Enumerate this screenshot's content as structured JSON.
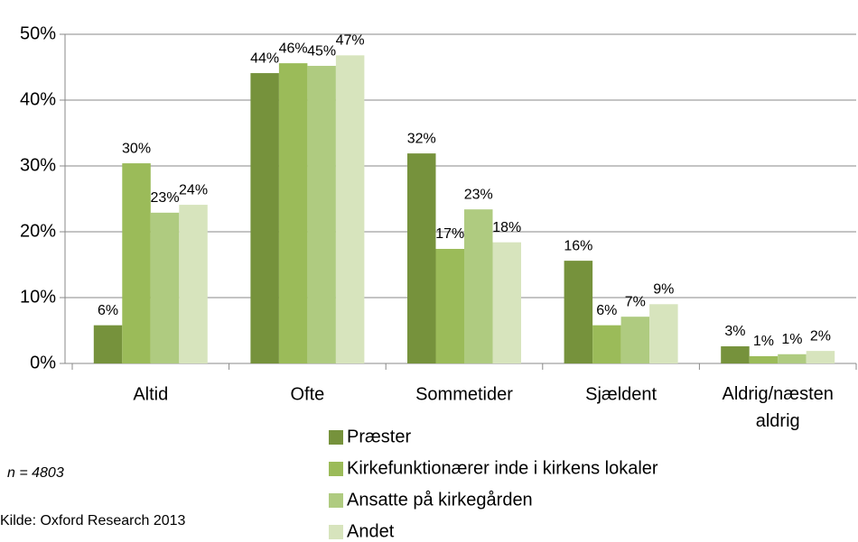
{
  "chart_data": {
    "type": "bar",
    "categories": [
      "Altid",
      "Ofte",
      "Sommetider",
      "Sjældent",
      "Aldrig/næsten aldrig"
    ],
    "series": [
      {
        "name": "Præster",
        "color": "#76923c",
        "values": [
          5.8,
          44.1,
          31.9,
          15.6,
          2.6
        ],
        "value_labels": [
          "6%",
          "44%",
          "32%",
          "16%",
          "3%"
        ]
      },
      {
        "name": "Kirkefunktionærer inde i kirkens lokaler",
        "color": "#9bbb59",
        "values": [
          30.4,
          45.6,
          17.4,
          5.8,
          1.1
        ],
        "value_labels": [
          "30%",
          "46%",
          "17%",
          "6%",
          "1%"
        ]
      },
      {
        "name": "Ansatte på kirkegården",
        "color": "#afcb80",
        "values": [
          22.9,
          45.2,
          23.4,
          7.1,
          1.4
        ],
        "value_labels": [
          "23%",
          "45%",
          "23%",
          "7%",
          "1%"
        ]
      },
      {
        "name": "Andet",
        "color": "#d7e4bd",
        "values": [
          24.1,
          46.8,
          18.4,
          9.0,
          1.9
        ],
        "value_labels": [
          "24%",
          "47%",
          "18%",
          "9%",
          "2%"
        ]
      }
    ],
    "ylim": [
      0,
      50
    ],
    "yticks": [
      {
        "value": 0,
        "label": "0%"
      },
      {
        "value": 10,
        "label": "10%"
      },
      {
        "value": 20,
        "label": "20%"
      },
      {
        "value": 30,
        "label": "30%"
      },
      {
        "value": 40,
        "label": "40%"
      },
      {
        "value": 50,
        "label": "50%"
      }
    ],
    "grid": true,
    "notes": [
      "n = 4803",
      "Kilde: Oxford Research 2013"
    ]
  }
}
